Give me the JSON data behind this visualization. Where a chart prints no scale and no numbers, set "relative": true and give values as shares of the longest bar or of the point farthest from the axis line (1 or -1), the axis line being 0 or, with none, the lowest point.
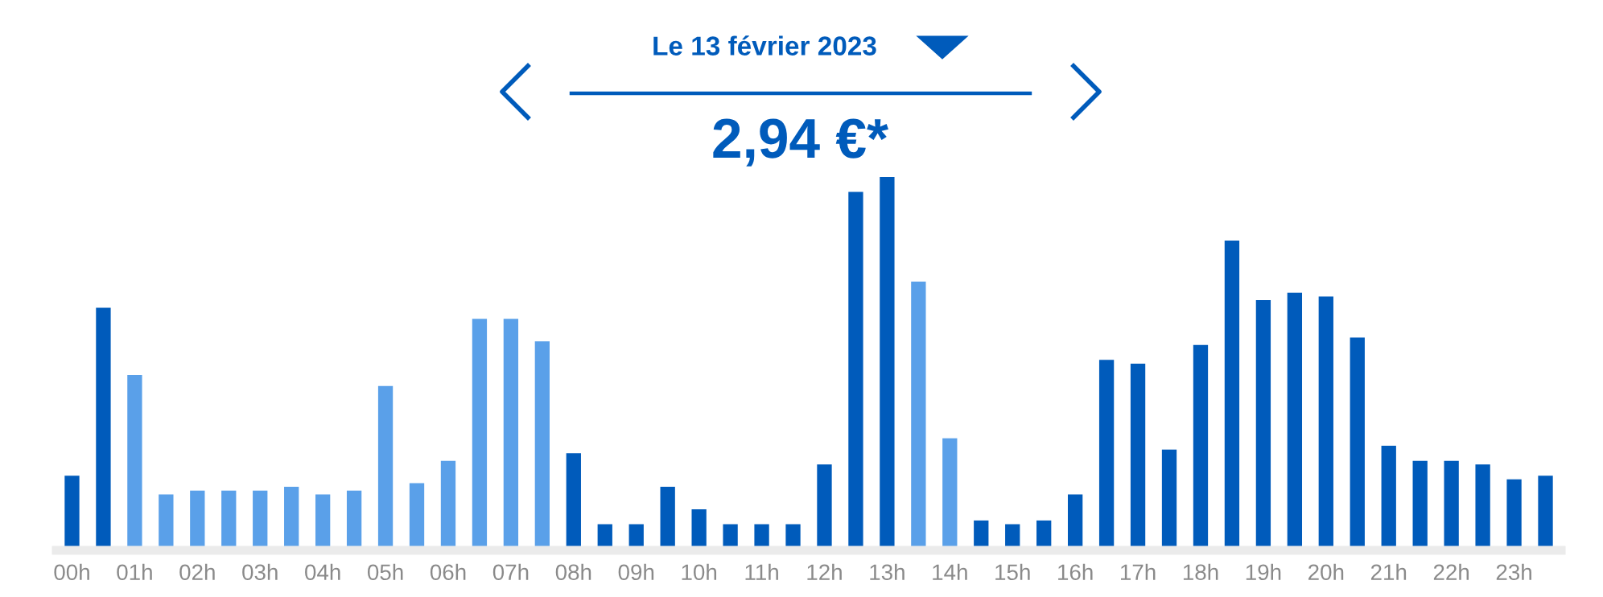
{
  "chart_data": {
    "type": "bar",
    "title": "Le 13 février 2023",
    "subtitle": "2,94 €*",
    "relative": true,
    "categories": [
      "00h",
      null,
      "01h",
      null,
      "02h",
      null,
      "03h",
      null,
      "04h",
      null,
      "05h",
      null,
      "06h",
      null,
      "07h",
      null,
      "08h",
      null,
      "09h",
      null,
      "10h",
      null,
      "11h",
      null,
      "12h",
      null,
      "13h",
      null,
      "14h",
      null,
      "15h",
      null,
      "16h",
      null,
      "17h",
      null,
      "18h",
      null,
      "19h",
      null,
      "20h",
      null,
      "21h",
      null,
      "22h",
      null,
      "23h",
      null
    ],
    "values": [
      0.2,
      0.65,
      0.47,
      0.15,
      0.16,
      0.16,
      0.16,
      0.17,
      0.15,
      0.16,
      0.44,
      0.18,
      0.24,
      0.62,
      0.62,
      0.56,
      0.26,
      0.07,
      0.07,
      0.17,
      0.11,
      0.07,
      0.07,
      0.07,
      0.23,
      0.96,
      1.0,
      0.72,
      0.3,
      0.08,
      0.07,
      0.08,
      0.15,
      0.51,
      0.5,
      0.27,
      0.55,
      0.83,
      0.67,
      0.69,
      0.68,
      0.57,
      0.28,
      0.24,
      0.24,
      0.23,
      0.19,
      0.2
    ],
    "colors": [
      "#005bbb",
      "#005bbb",
      "#5aa0e9",
      "#5aa0e9",
      "#5aa0e9",
      "#5aa0e9",
      "#5aa0e9",
      "#5aa0e9",
      "#5aa0e9",
      "#5aa0e9",
      "#5aa0e9",
      "#5aa0e9",
      "#5aa0e9",
      "#5aa0e9",
      "#5aa0e9",
      "#5aa0e9",
      "#005bbb",
      "#005bbb",
      "#005bbb",
      "#005bbb",
      "#005bbb",
      "#005bbb",
      "#005bbb",
      "#005bbb",
      "#005bbb",
      "#005bbb",
      "#005bbb",
      "#5aa0e9",
      "#5aa0e9",
      "#005bbb",
      "#005bbb",
      "#005bbb",
      "#005bbb",
      "#005bbb",
      "#005bbb",
      "#005bbb",
      "#005bbb",
      "#005bbb",
      "#005bbb",
      "#005bbb",
      "#005bbb",
      "#005bbb",
      "#005bbb",
      "#005bbb",
      "#005bbb",
      "#005bbb",
      "#005bbb",
      "#005bbb"
    ],
    "grid": false
  }
}
